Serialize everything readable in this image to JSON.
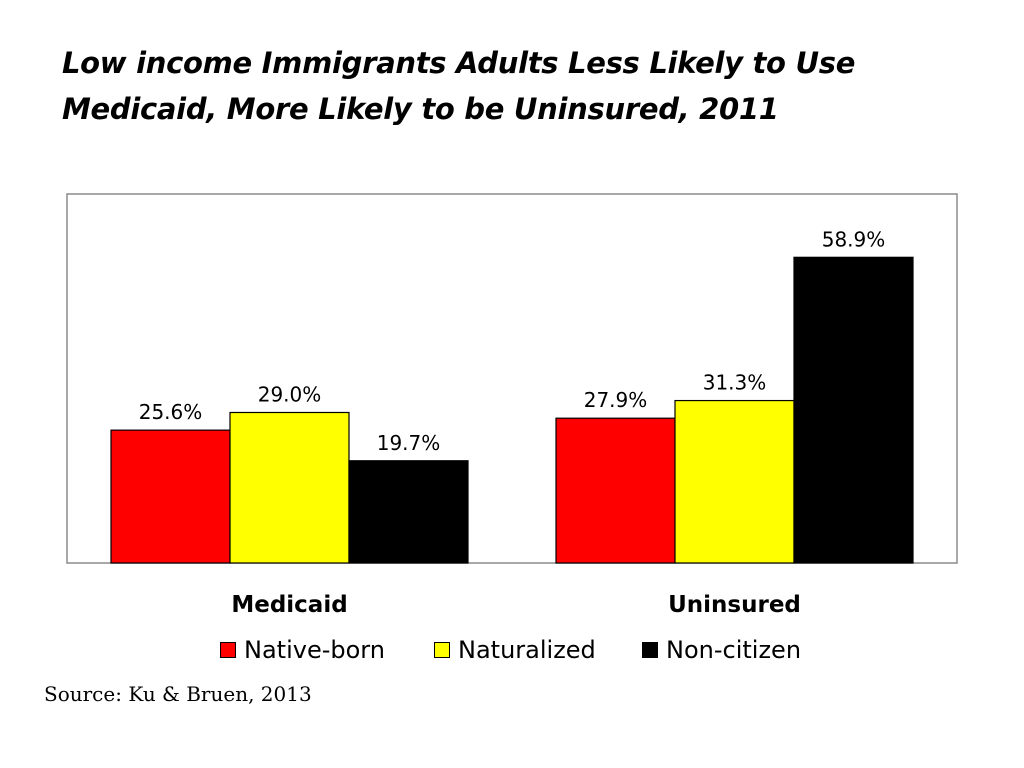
{
  "title": {
    "line1": "Low income Immigrants Adults Less Likely to Use",
    "line2": "Medicaid, More Likely to be Uninsured, 2011"
  },
  "source": "Source: Ku & Bruen, 2013",
  "chart_data": {
    "type": "bar",
    "categories": [
      "Medicaid",
      "Uninsured"
    ],
    "series": [
      {
        "name": "Native-born",
        "color": "#ff0000",
        "values": [
          25.6,
          27.9
        ],
        "labels": [
          "25.6%",
          "27.9%"
        ]
      },
      {
        "name": "Naturalized",
        "color": "#ffff00",
        "values": [
          29.0,
          31.3
        ],
        "labels": [
          "29.0%",
          "31.3%"
        ]
      },
      {
        "name": "Non-citizen",
        "color": "#000000",
        "values": [
          19.7,
          58.9
        ],
        "labels": [
          "19.7%",
          "58.9%"
        ]
      }
    ],
    "ylim": [
      0,
      70
    ],
    "grid": false,
    "legend_position": "bottom"
  }
}
